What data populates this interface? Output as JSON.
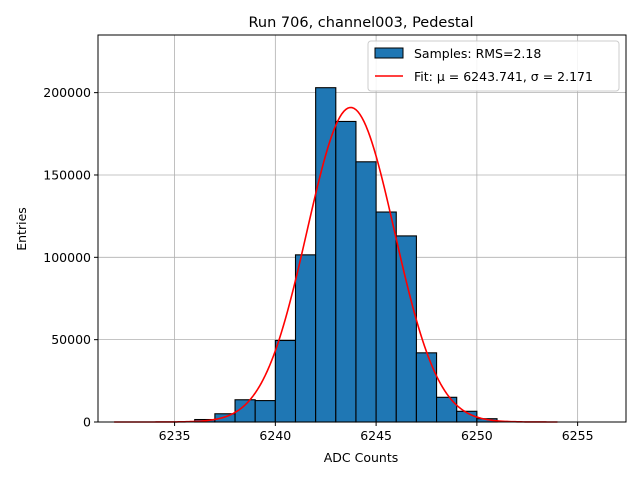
{
  "chart_data": {
    "type": "bar",
    "title": "Run 706, channel003, Pedestal",
    "xlabel": "ADC Counts",
    "ylabel": "Entries",
    "xlim": [
      6231.2,
      6257.4
    ],
    "ylim": [
      0,
      235000
    ],
    "xticks": [
      6235,
      6240,
      6245,
      6250,
      6255
    ],
    "yticks": [
      0,
      50000,
      100000,
      150000,
      200000
    ],
    "grid": true,
    "legend_position": "top-right",
    "colors": {
      "bars": "#1f77b4",
      "bar_edge": "#000000",
      "fit": "#ff0000",
      "grid": "#b0b0b0"
    },
    "histogram": {
      "name": "Samples: RMS=2.18",
      "bin_width": 1,
      "bin_starts": [
        6236,
        6237,
        6238,
        6239,
        6240,
        6241,
        6242,
        6243,
        6244,
        6245,
        6246,
        6247,
        6248,
        6249,
        6250
      ],
      "values": [
        1500,
        5000,
        13500,
        13000,
        49500,
        101500,
        203000,
        182500,
        158000,
        127500,
        113000,
        42000,
        15000,
        6500,
        2000
      ]
    },
    "fit": {
      "name": "Fit: μ = 6243.741, σ = 2.171",
      "mu": 6243.741,
      "sigma": 2.171,
      "amplitude": 191000,
      "x_range": [
        6232,
        6254
      ]
    }
  }
}
